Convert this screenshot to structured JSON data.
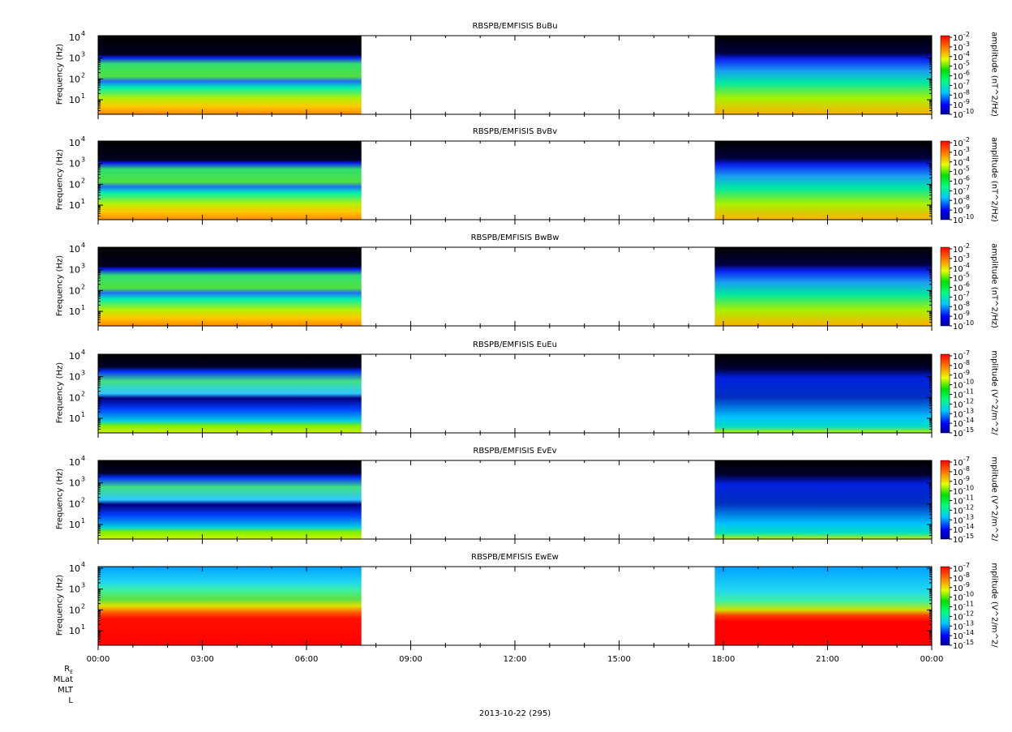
{
  "chart_data": [
    {
      "type": "heatmap",
      "title": "RBSPB/EMFISIS  BuBu",
      "ylabel": "Frequency (Hz)",
      "yscale": "log",
      "ylim": [
        2,
        12000
      ],
      "xlabel": "",
      "colorbar_label": "amplitude (nT^2/Hz)",
      "colorbar_ticks": [
        "-2",
        "-3",
        "-4",
        "-5",
        "-6",
        "-7",
        "-8",
        "-9",
        "-10"
      ],
      "colorbar_range": [
        1e-10,
        0.01
      ],
      "data_gap": [
        "07:35",
        "17:45"
      ]
    },
    {
      "type": "heatmap",
      "title": "RBSPB/EMFISIS  BvBv",
      "ylabel": "Frequency (Hz)",
      "yscale": "log",
      "ylim": [
        2,
        12000
      ],
      "xlabel": "",
      "colorbar_label": "amplitude (nT^2/Hz)",
      "colorbar_ticks": [
        "-2",
        "-3",
        "-4",
        "-5",
        "-6",
        "-7",
        "-8",
        "-9",
        "-10"
      ],
      "colorbar_range": [
        1e-10,
        0.01
      ],
      "data_gap": [
        "07:35",
        "17:45"
      ]
    },
    {
      "type": "heatmap",
      "title": "RBSPB/EMFISIS  BwBw",
      "ylabel": "Frequency (Hz)",
      "yscale": "log",
      "ylim": [
        2,
        12000
      ],
      "xlabel": "",
      "colorbar_label": "amplitude (nT^2/Hz)",
      "colorbar_ticks": [
        "-2",
        "-3",
        "-4",
        "-5",
        "-6",
        "-7",
        "-8",
        "-9",
        "-10"
      ],
      "colorbar_range": [
        1e-10,
        0.01
      ],
      "data_gap": [
        "07:35",
        "17:45"
      ]
    },
    {
      "type": "heatmap",
      "title": "RBSPB/EMFISIS  EuEu",
      "ylabel": "Frequency (Hz)",
      "yscale": "log",
      "ylim": [
        2,
        12000
      ],
      "xlabel": "",
      "colorbar_label": "mplitude (V^2/m^2/",
      "colorbar_ticks": [
        "-7",
        "-8",
        "-9",
        "-10",
        "-11",
        "-12",
        "-13",
        "-14",
        "-15"
      ],
      "colorbar_range": [
        1e-15,
        1e-07
      ],
      "data_gap": [
        "07:35",
        "17:45"
      ]
    },
    {
      "type": "heatmap",
      "title": "RBSPB/EMFISIS  EvEv",
      "ylabel": "Frequency (Hz)",
      "yscale": "log",
      "ylim": [
        2,
        12000
      ],
      "xlabel": "",
      "colorbar_label": "mplitude (V^2/m^2/",
      "colorbar_ticks": [
        "-7",
        "-8",
        "-9",
        "-10",
        "-11",
        "-12",
        "-13",
        "-14",
        "-15"
      ],
      "colorbar_range": [
        1e-15,
        1e-07
      ],
      "data_gap": [
        "07:35",
        "17:45"
      ]
    },
    {
      "type": "heatmap",
      "title": "RBSPB/EMFISIS  EwEw",
      "ylabel": "Frequency (Hz)",
      "yscale": "log",
      "ylim": [
        2,
        12000
      ],
      "xlabel": "",
      "colorbar_label": "mplitude (V^2/m^2/",
      "colorbar_ticks": [
        "-7",
        "-8",
        "-9",
        "-10",
        "-11",
        "-12",
        "-13",
        "-14",
        "-15"
      ],
      "colorbar_range": [
        1e-15,
        1e-07
      ],
      "data_gap": [
        "07:35",
        "17:45"
      ]
    }
  ],
  "shared_axis": {
    "y_tick_exponents": [
      "4",
      "3",
      "2",
      "1"
    ],
    "x_ticks": [
      "00:00",
      "03:00",
      "06:00",
      "09:00",
      "12:00",
      "15:00",
      "18:00",
      "21:00",
      "00:00"
    ],
    "footer_labels": [
      "R",
      "MLat",
      "MLT",
      "L"
    ],
    "footer_subscript": "E",
    "date_label": "2013-10-22 (295)"
  }
}
